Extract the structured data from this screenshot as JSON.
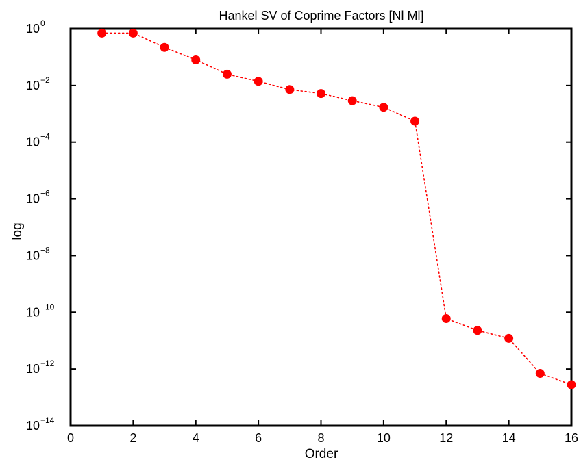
{
  "chart_data": {
    "type": "scatter",
    "title": "Hankel SV of Coprime Factors [Nl Ml]",
    "xlabel": "Order",
    "ylabel": "log",
    "xlim": [
      0,
      16
    ],
    "ylim": [
      1e-14,
      1
    ],
    "yscale": "log",
    "x_ticks": [
      "0",
      "2",
      "4",
      "6",
      "8",
      "10",
      "12",
      "14",
      "16"
    ],
    "y_ticks": [
      {
        "base": "10",
        "exp": "0"
      },
      {
        "base": "10",
        "exp": "−2"
      },
      {
        "base": "10",
        "exp": "−4"
      },
      {
        "base": "10",
        "exp": "−6"
      },
      {
        "base": "10",
        "exp": "−8"
      },
      {
        "base": "10",
        "exp": "−10"
      },
      {
        "base": "10",
        "exp": "−12"
      },
      {
        "base": "10",
        "exp": "−14"
      }
    ],
    "grid": false,
    "marker_color": "#ff0000",
    "line_style": "dotted",
    "series": [
      {
        "x": [
          1,
          2,
          3,
          4,
          5,
          6,
          7,
          8,
          9,
          10,
          11,
          12,
          13,
          14,
          15,
          16
        ],
        "y": [
          0.7,
          0.7,
          0.22,
          0.08,
          0.025,
          0.014,
          0.0072,
          0.0052,
          0.0029,
          0.0017,
          0.00055,
          6e-11,
          2.3e-11,
          1.2e-11,
          7e-13,
          2.8e-13
        ]
      }
    ]
  }
}
